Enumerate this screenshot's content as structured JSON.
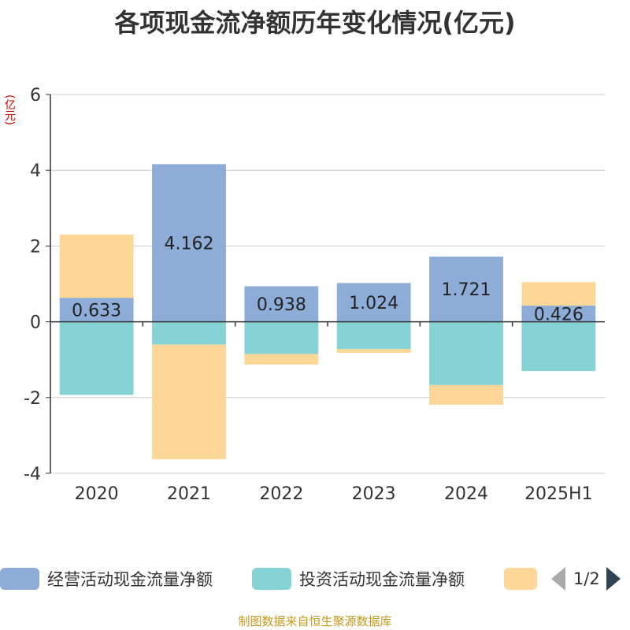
{
  "title": "各项现金流净额历年变化情况(亿元)",
  "unit_label": "(亿元)",
  "source_note": "制图数据来自恒生聚源数据库",
  "legend": {
    "items": [
      {
        "label": "经营活动现金流量净额",
        "color": "#8eacd8"
      },
      {
        "label": "投资活动现金流量净额",
        "color": "#86d3d6"
      },
      {
        "label": "",
        "color": "#fdd797"
      }
    ],
    "pager": {
      "text": "1/2"
    }
  },
  "chart_data": {
    "type": "bar",
    "stacked": true,
    "categories": [
      "2020",
      "2021",
      "2022",
      "2023",
      "2024",
      "2025H1"
    ],
    "ylim": [
      -4,
      6
    ],
    "yticks": [
      -4,
      -2,
      0,
      2,
      4,
      6
    ],
    "grid": true,
    "legend_position": "bottom",
    "series": [
      {
        "name": "经营活动现金流量净额",
        "color": "#8eacd8",
        "values": [
          0.633,
          4.162,
          0.938,
          1.024,
          1.721,
          0.426
        ],
        "labels": [
          "0.633",
          "4.162",
          "0.938",
          "1.024",
          "1.721",
          "0.426"
        ]
      },
      {
        "name": "投资活动现金流量净额",
        "color": "#86d3d6",
        "values": [
          -1.93,
          -0.6,
          -0.85,
          -0.72,
          -1.67,
          -1.3
        ]
      },
      {
        "color": "#fdd797",
        "values": [
          1.67,
          -3.03,
          -0.28,
          -0.1,
          -0.52,
          0.62
        ]
      }
    ]
  }
}
